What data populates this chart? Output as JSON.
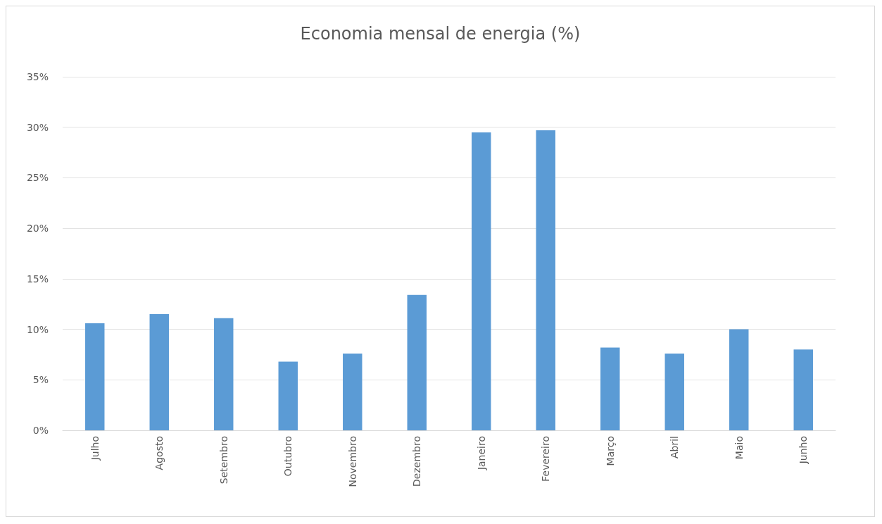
{
  "chart_data": {
    "type": "bar",
    "title": "Economia mensal de energia (%)",
    "categories": [
      "Julho",
      "Agosto",
      "Setembro",
      "Outubro",
      "Novembro",
      "Dezembro",
      "Janeiro",
      "Fevereiro",
      "Março",
      "Abril",
      "Maio",
      "Junho"
    ],
    "values": [
      10.6,
      11.5,
      11.1,
      6.8,
      7.6,
      13.4,
      29.5,
      29.7,
      8.2,
      7.6,
      10.0,
      8.0
    ],
    "color": "#5b9bd5",
    "ylim": [
      0,
      35
    ],
    "yticks": [
      {
        "value": 0,
        "label": "0%"
      },
      {
        "value": 5,
        "label": "5%"
      },
      {
        "value": 10,
        "label": "10%"
      },
      {
        "value": 15,
        "label": "15%"
      },
      {
        "value": 20,
        "label": "20%"
      },
      {
        "value": 25,
        "label": "25%"
      },
      {
        "value": 30,
        "label": "30%"
      },
      {
        "value": 35,
        "label": "35%"
      }
    ],
    "grid": "y"
  }
}
